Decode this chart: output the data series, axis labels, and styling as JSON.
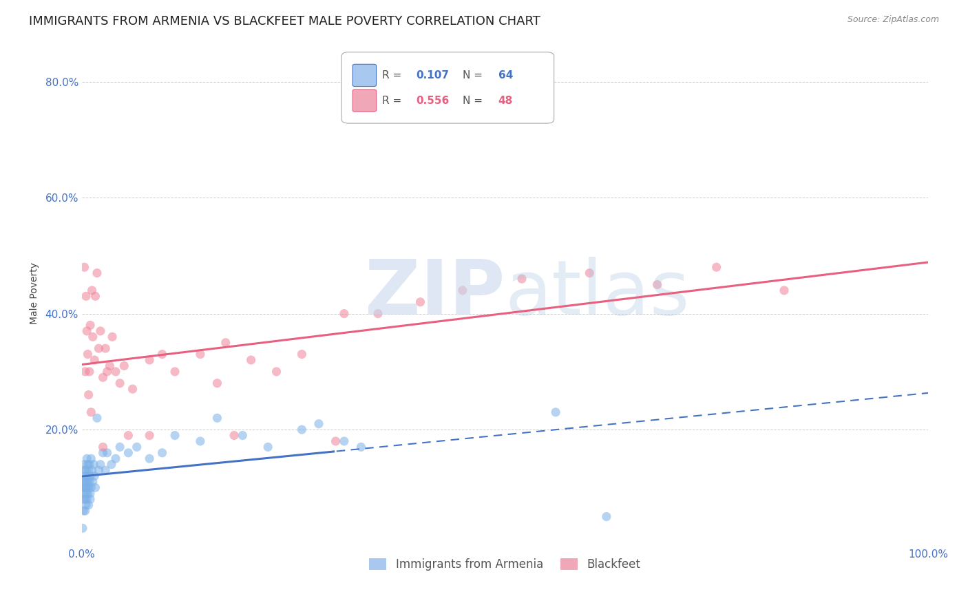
{
  "title": "IMMIGRANTS FROM ARMENIA VS BLACKFEET MALE POVERTY CORRELATION CHART",
  "source": "Source: ZipAtlas.com",
  "ylabel": "Male Poverty",
  "xlim": [
    0.0,
    1.0
  ],
  "ylim": [
    0.0,
    0.87
  ],
  "x_ticks": [
    0.0,
    0.2,
    0.4,
    0.6,
    0.8,
    1.0
  ],
  "x_tick_labels": [
    "0.0%",
    "",
    "",
    "",
    "",
    "100.0%"
  ],
  "y_ticks": [
    0.2,
    0.4,
    0.6,
    0.8
  ],
  "y_tick_labels": [
    "20.0%",
    "40.0%",
    "60.0%",
    "80.0%"
  ],
  "armenia_color": "#7ab0e8",
  "blackfeet_color": "#f08098",
  "armenia_legend_color": "#a8c8f0",
  "blackfeet_legend_color": "#f0a8b8",
  "armenia_line_color": "#4472c4",
  "blackfeet_line_color": "#e86080",
  "R_armenia": "0.107",
  "N_armenia": "64",
  "R_blackfeet": "0.556",
  "N_blackfeet": "48",
  "armenia_scatter": {
    "x": [
      0.001,
      0.001,
      0.002,
      0.002,
      0.002,
      0.003,
      0.003,
      0.003,
      0.003,
      0.004,
      0.004,
      0.004,
      0.004,
      0.005,
      0.005,
      0.005,
      0.005,
      0.005,
      0.006,
      0.006,
      0.006,
      0.006,
      0.007,
      0.007,
      0.007,
      0.008,
      0.008,
      0.008,
      0.009,
      0.009,
      0.01,
      0.01,
      0.01,
      0.011,
      0.011,
      0.012,
      0.013,
      0.014,
      0.015,
      0.016,
      0.018,
      0.02,
      0.022,
      0.025,
      0.028,
      0.03,
      0.035,
      0.04,
      0.045,
      0.055,
      0.065,
      0.08,
      0.095,
      0.11,
      0.14,
      0.16,
      0.19,
      0.22,
      0.26,
      0.31,
      0.28,
      0.33,
      0.56,
      0.62
    ],
    "y": [
      0.1,
      0.03,
      0.11,
      0.08,
      0.06,
      0.09,
      0.13,
      0.11,
      0.14,
      0.1,
      0.12,
      0.08,
      0.06,
      0.1,
      0.11,
      0.09,
      0.13,
      0.07,
      0.1,
      0.12,
      0.08,
      0.15,
      0.11,
      0.09,
      0.14,
      0.1,
      0.13,
      0.07,
      0.11,
      0.14,
      0.09,
      0.12,
      0.08,
      0.1,
      0.15,
      0.13,
      0.11,
      0.14,
      0.12,
      0.1,
      0.22,
      0.13,
      0.14,
      0.16,
      0.13,
      0.16,
      0.14,
      0.15,
      0.17,
      0.16,
      0.17,
      0.15,
      0.16,
      0.19,
      0.18,
      0.22,
      0.19,
      0.17,
      0.2,
      0.18,
      0.21,
      0.17,
      0.23,
      0.05
    ]
  },
  "blackfeet_scatter": {
    "x": [
      0.003,
      0.004,
      0.005,
      0.006,
      0.007,
      0.008,
      0.009,
      0.01,
      0.011,
      0.012,
      0.013,
      0.015,
      0.016,
      0.018,
      0.02,
      0.022,
      0.025,
      0.028,
      0.03,
      0.033,
      0.036,
      0.04,
      0.045,
      0.05,
      0.055,
      0.06,
      0.08,
      0.095,
      0.11,
      0.14,
      0.16,
      0.18,
      0.2,
      0.23,
      0.26,
      0.3,
      0.35,
      0.4,
      0.45,
      0.52,
      0.6,
      0.68,
      0.75,
      0.83,
      0.31,
      0.17,
      0.08,
      0.025
    ],
    "y": [
      0.48,
      0.3,
      0.43,
      0.37,
      0.33,
      0.26,
      0.3,
      0.38,
      0.23,
      0.44,
      0.36,
      0.32,
      0.43,
      0.47,
      0.34,
      0.37,
      0.29,
      0.34,
      0.3,
      0.31,
      0.36,
      0.3,
      0.28,
      0.31,
      0.19,
      0.27,
      0.19,
      0.33,
      0.3,
      0.33,
      0.28,
      0.19,
      0.32,
      0.3,
      0.33,
      0.18,
      0.4,
      0.42,
      0.44,
      0.46,
      0.47,
      0.45,
      0.48,
      0.44,
      0.4,
      0.35,
      0.32,
      0.17
    ]
  },
  "background_color": "#ffffff",
  "grid_color": "#cccccc",
  "scatter_alpha": 0.55,
  "scatter_size": 90,
  "title_fontsize": 13,
  "axis_label_fontsize": 10,
  "tick_fontsize": 11
}
